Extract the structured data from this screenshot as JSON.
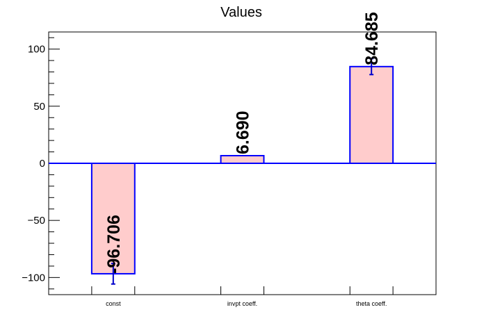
{
  "chart_data": {
    "type": "bar",
    "title": "Values",
    "xlabel": "",
    "ylabel": "",
    "categories": [
      "const",
      "invpt coeff.",
      "theta coeff."
    ],
    "values": [
      -96.706,
      6.69,
      84.685
    ],
    "value_labels": [
      "-96.706",
      "6.690",
      "84.685"
    ],
    "errors": [
      9,
      0,
      7
    ],
    "ylim": [
      -115,
      115
    ],
    "yticks": [
      -100,
      -50,
      0,
      50,
      100
    ],
    "ytick_labels": [
      "−100",
      "−50",
      "0",
      "50",
      "100"
    ],
    "grid": false,
    "legend": "none",
    "colors": {
      "bar_fill": "#ffcccc",
      "bar_edge": "#0000ff",
      "error_bar": "#0000cc",
      "zero_line": "#0000ff",
      "text": "#000000"
    }
  }
}
